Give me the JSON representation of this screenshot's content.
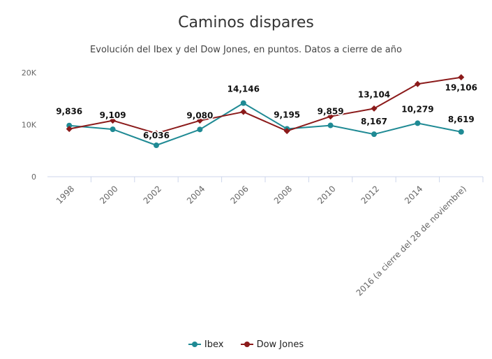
{
  "chart_data": {
    "type": "line",
    "title": "Caminos dispares",
    "subtitle": "Evolución del Ibex y del Dow Jones, en puntos. Datos a cierre de año",
    "categories": [
      "1998",
      "2000",
      "2002",
      "2004",
      "2006",
      "2008",
      "2010",
      "2012",
      "2014",
      "2016 (a cierre del 28 de noviembre)"
    ],
    "y_ticks": [
      "0",
      "10K",
      "20K"
    ],
    "ylim": [
      0,
      20000
    ],
    "series": [
      {
        "name": "Ibex",
        "color": "#1f8a94",
        "values": [
          9836,
          9109,
          6036,
          9080,
          14146,
          9195,
          9859,
          8167,
          10279,
          8619
        ]
      },
      {
        "name": "Dow Jones",
        "color": "#8b1a1a",
        "values": [
          9181,
          10787,
          8342,
          10783,
          12463,
          8776,
          11578,
          13104,
          17823,
          19106
        ]
      }
    ],
    "data_labels": [
      {
        "category": "1998",
        "value": 9836,
        "text": "9,836"
      },
      {
        "category": "2000",
        "value": 9109,
        "text": "9,109"
      },
      {
        "category": "2002",
        "value": 6036,
        "text": "6,036"
      },
      {
        "category": "2004",
        "value": 9080,
        "text": "9,080"
      },
      {
        "category": "2006",
        "value": 14146,
        "text": "14,146"
      },
      {
        "category": "2008",
        "value": 9195,
        "text": "9,195"
      },
      {
        "category": "2010",
        "value": 9859,
        "text": "9,859"
      },
      {
        "category": "2012",
        "value": 8167,
        "text": "8,167"
      },
      {
        "category": "2012",
        "value": 13104,
        "text": "13,104"
      },
      {
        "category": "2014",
        "value": 10279,
        "text": "10,279"
      },
      {
        "category": "2016 (a cierre del 28 de noviembre)",
        "value": 19106,
        "text": "19,106"
      },
      {
        "category": "2016 (a cierre del 28 de noviembre)",
        "value": 8619,
        "text": "8,619"
      }
    ],
    "legend": [
      "Ibex",
      "Dow Jones"
    ],
    "grid": false
  }
}
